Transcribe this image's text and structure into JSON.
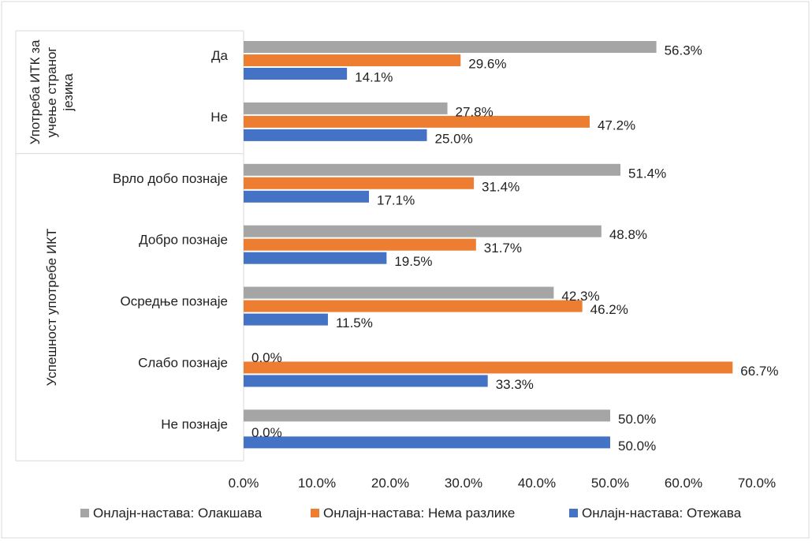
{
  "chart_data": {
    "type": "bar",
    "orientation": "horizontal",
    "grouped_categories": true,
    "groups": [
      {
        "label_lines": [
          "Употреба ИТК за",
          "учење страног",
          "језика"
        ],
        "categories": [
          "Да",
          "Не"
        ]
      },
      {
        "label_lines": [
          "Успешност употребе ИКТ"
        ],
        "categories": [
          "Врло добо познаје",
          "Добро познаје",
          "Осредње познаје",
          "Слабо познаје",
          "Не познаје"
        ]
      }
    ],
    "categories": [
      "Да",
      "Не",
      "Врло добо познаје",
      "Добро познаје",
      "Осредње познаје",
      "Слабо познаје",
      "Не познаје"
    ],
    "series": [
      {
        "name": "Онлајн-настава: Олакшава",
        "color": "#a5a5a5",
        "values": [
          56.3,
          27.8,
          51.4,
          48.8,
          42.3,
          0.0,
          50.0
        ],
        "labels": [
          "56.3%",
          "27.8%",
          "51.4%",
          "48.8%",
          "42.3%",
          "0.0%",
          "50.0%"
        ]
      },
      {
        "name": "Онлајн-настава: Нема разлике",
        "color": "#ed7d31",
        "values": [
          29.6,
          47.2,
          31.4,
          31.7,
          46.2,
          66.7,
          0.0
        ],
        "labels": [
          "29.6%",
          "47.2%",
          "31.4%",
          "31.7%",
          "46.2%",
          "66.7%",
          "0.0%"
        ]
      },
      {
        "name": "Онлајн-настава: Отежава",
        "color": "#4472c4",
        "values": [
          14.1,
          25.0,
          17.1,
          19.5,
          11.5,
          33.3,
          50.0
        ],
        "labels": [
          "14.1%",
          "25.0%",
          "17.1%",
          "19.5%",
          "11.5%",
          "33.3%",
          "50.0%"
        ]
      }
    ],
    "x_ticks": [
      "0.0%",
      "10.0%",
      "20.0%",
      "30.0%",
      "40.0%",
      "50.0%",
      "60.0%",
      "70.0%"
    ],
    "xlim": [
      0,
      70
    ],
    "grid": false,
    "legend": "bottom"
  }
}
